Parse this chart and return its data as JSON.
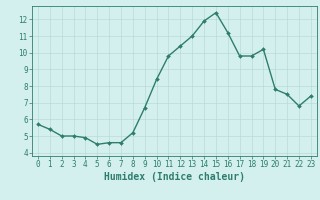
{
  "x": [
    0,
    1,
    2,
    3,
    4,
    5,
    6,
    7,
    8,
    9,
    10,
    11,
    12,
    13,
    14,
    15,
    16,
    17,
    18,
    19,
    20,
    21,
    22,
    23
  ],
  "y": [
    5.7,
    5.4,
    5.0,
    5.0,
    4.9,
    4.5,
    4.6,
    4.6,
    5.2,
    6.7,
    8.4,
    9.8,
    10.4,
    11.0,
    11.9,
    12.4,
    11.2,
    9.8,
    9.8,
    10.2,
    7.8,
    7.5,
    6.8,
    7.4
  ],
  "line_color": "#2e7d6e",
  "bg_color": "#d4f0ee",
  "grid_color": "#b8dbd8",
  "xlabel": "Humidex (Indice chaleur)",
  "ylim": [
    3.8,
    12.8
  ],
  "xlim": [
    -0.5,
    23.5
  ],
  "yticks": [
    4,
    5,
    6,
    7,
    8,
    9,
    10,
    11,
    12
  ],
  "xticks": [
    0,
    1,
    2,
    3,
    4,
    5,
    6,
    7,
    8,
    9,
    10,
    11,
    12,
    13,
    14,
    15,
    16,
    17,
    18,
    19,
    20,
    21,
    22,
    23
  ],
  "tick_fontsize": 5.5,
  "xlabel_fontsize": 7.0,
  "linewidth": 1.0,
  "markersize": 2.0
}
